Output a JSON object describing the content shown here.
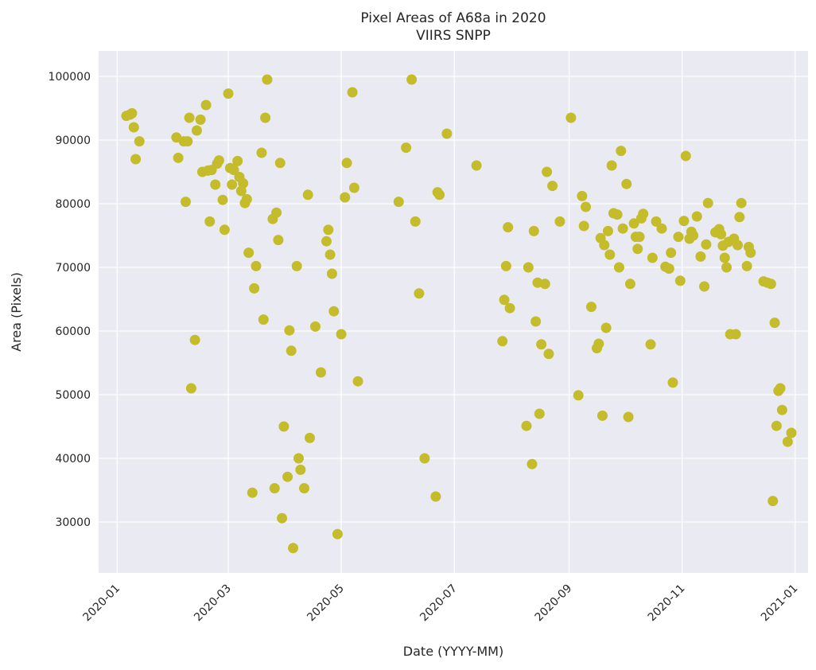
{
  "chart_data": {
    "type": "scatter",
    "title": "Pixel Areas of A68a in 2020",
    "subtitle": "VIIRS SNPP",
    "xlabel": "Date (YYYY-MM)",
    "ylabel": "Area (Pixels)",
    "xlim": [
      "2019-12-22",
      "2021-01-08"
    ],
    "ylim": [
      22000,
      104000
    ],
    "xticks": [
      "2020-01",
      "2020-03",
      "2020-05",
      "2020-07",
      "2020-09",
      "2020-11",
      "2021-01"
    ],
    "yticks": [
      30000,
      40000,
      50000,
      60000,
      70000,
      80000,
      90000,
      100000
    ],
    "grid": true,
    "marker_color": "#c4bc2b",
    "background_color": "#eaeaf2",
    "points": [
      [
        "2020-01-06",
        93800
      ],
      [
        "2020-01-08",
        94000
      ],
      [
        "2020-01-09",
        94200
      ],
      [
        "2020-01-10",
        92000
      ],
      [
        "2020-01-11",
        87000
      ],
      [
        "2020-01-13",
        89800
      ],
      [
        "2020-02-02",
        90400
      ],
      [
        "2020-02-03",
        87200
      ],
      [
        "2020-02-06",
        89800
      ],
      [
        "2020-02-07",
        80300
      ],
      [
        "2020-02-08",
        89800
      ],
      [
        "2020-02-09",
        93500
      ],
      [
        "2020-02-10",
        51000
      ],
      [
        "2020-02-12",
        58600
      ],
      [
        "2020-02-13",
        91500
      ],
      [
        "2020-02-15",
        93200
      ],
      [
        "2020-02-16",
        85000
      ],
      [
        "2020-02-18",
        95500
      ],
      [
        "2020-02-19",
        85200
      ],
      [
        "2020-02-20",
        77200
      ],
      [
        "2020-02-21",
        85300
      ],
      [
        "2020-02-23",
        83000
      ],
      [
        "2020-02-24",
        86300
      ],
      [
        "2020-02-25",
        86800
      ],
      [
        "2020-02-27",
        80600
      ],
      [
        "2020-02-28",
        75900
      ],
      [
        "2020-03-01",
        97300
      ],
      [
        "2020-03-02",
        85600
      ],
      [
        "2020-03-03",
        83000
      ],
      [
        "2020-03-04",
        85300
      ],
      [
        "2020-03-06",
        86700
      ],
      [
        "2020-03-07",
        84200
      ],
      [
        "2020-03-08",
        82000
      ],
      [
        "2020-03-09",
        83200
      ],
      [
        "2020-03-10",
        80100
      ],
      [
        "2020-03-11",
        80700
      ],
      [
        "2020-03-12",
        72300
      ],
      [
        "2020-03-14",
        34600
      ],
      [
        "2020-03-15",
        66700
      ],
      [
        "2020-03-16",
        70200
      ],
      [
        "2020-03-19",
        88000
      ],
      [
        "2020-03-20",
        61800
      ],
      [
        "2020-03-21",
        93500
      ],
      [
        "2020-03-22",
        99500
      ],
      [
        "2020-03-25",
        77600
      ],
      [
        "2020-03-26",
        35300
      ],
      [
        "2020-03-27",
        78600
      ],
      [
        "2020-03-28",
        74300
      ],
      [
        "2020-03-29",
        86400
      ],
      [
        "2020-03-30",
        30600
      ],
      [
        "2020-03-31",
        45000
      ],
      [
        "2020-04-02",
        37100
      ],
      [
        "2020-04-03",
        60100
      ],
      [
        "2020-04-04",
        56900
      ],
      [
        "2020-04-05",
        25900
      ],
      [
        "2020-04-07",
        70200
      ],
      [
        "2020-04-08",
        40000
      ],
      [
        "2020-04-09",
        38200
      ],
      [
        "2020-04-11",
        35300
      ],
      [
        "2020-04-13",
        81400
      ],
      [
        "2020-04-14",
        43200
      ],
      [
        "2020-04-17",
        60700
      ],
      [
        "2020-04-20",
        53500
      ],
      [
        "2020-04-23",
        74100
      ],
      [
        "2020-04-24",
        75900
      ],
      [
        "2020-04-25",
        72000
      ],
      [
        "2020-04-26",
        69000
      ],
      [
        "2020-04-27",
        63100
      ],
      [
        "2020-04-29",
        28100
      ],
      [
        "2020-05-01",
        59500
      ],
      [
        "2020-05-03",
        81000
      ],
      [
        "2020-05-04",
        86400
      ],
      [
        "2020-05-07",
        97500
      ],
      [
        "2020-05-08",
        82500
      ],
      [
        "2020-05-10",
        52100
      ],
      [
        "2020-06-01",
        80300
      ],
      [
        "2020-06-05",
        88800
      ],
      [
        "2020-06-08",
        99500
      ],
      [
        "2020-06-10",
        77200
      ],
      [
        "2020-06-12",
        65900
      ],
      [
        "2020-06-15",
        40000
      ],
      [
        "2020-06-21",
        34000
      ],
      [
        "2020-06-22",
        81800
      ],
      [
        "2020-06-23",
        81400
      ],
      [
        "2020-06-27",
        91000
      ],
      [
        "2020-07-13",
        86000
      ],
      [
        "2020-07-27",
        58400
      ],
      [
        "2020-07-28",
        64900
      ],
      [
        "2020-07-29",
        70200
      ],
      [
        "2020-07-30",
        76300
      ],
      [
        "2020-07-31",
        63600
      ],
      [
        "2020-08-09",
        45100
      ],
      [
        "2020-08-10",
        70000
      ],
      [
        "2020-08-12",
        39100
      ],
      [
        "2020-08-13",
        75700
      ],
      [
        "2020-08-14",
        61500
      ],
      [
        "2020-08-15",
        67600
      ],
      [
        "2020-08-16",
        47000
      ],
      [
        "2020-08-17",
        57900
      ],
      [
        "2020-08-19",
        67400
      ],
      [
        "2020-08-20",
        85000
      ],
      [
        "2020-08-21",
        56400
      ],
      [
        "2020-08-23",
        82800
      ],
      [
        "2020-08-27",
        77200
      ],
      [
        "2020-09-02",
        93500
      ],
      [
        "2020-09-06",
        49900
      ],
      [
        "2020-09-08",
        81200
      ],
      [
        "2020-09-09",
        76500
      ],
      [
        "2020-09-10",
        79500
      ],
      [
        "2020-09-13",
        63800
      ],
      [
        "2020-09-16",
        57300
      ],
      [
        "2020-09-17",
        58000
      ],
      [
        "2020-09-18",
        74600
      ],
      [
        "2020-09-19",
        46700
      ],
      [
        "2020-09-20",
        73500
      ],
      [
        "2020-09-21",
        60500
      ],
      [
        "2020-09-22",
        75700
      ],
      [
        "2020-09-23",
        72000
      ],
      [
        "2020-09-24",
        86000
      ],
      [
        "2020-09-25",
        78500
      ],
      [
        "2020-09-27",
        78300
      ],
      [
        "2020-09-28",
        70000
      ],
      [
        "2020-09-29",
        88300
      ],
      [
        "2020-09-30",
        76100
      ],
      [
        "2020-10-02",
        83100
      ],
      [
        "2020-10-03",
        46500
      ],
      [
        "2020-10-04",
        67400
      ],
      [
        "2020-10-06",
        76900
      ],
      [
        "2020-10-07",
        74800
      ],
      [
        "2020-10-08",
        72900
      ],
      [
        "2020-10-09",
        74800
      ],
      [
        "2020-10-10",
        77700
      ],
      [
        "2020-10-11",
        78400
      ],
      [
        "2020-10-15",
        57900
      ],
      [
        "2020-10-16",
        71500
      ],
      [
        "2020-10-18",
        77200
      ],
      [
        "2020-10-21",
        76100
      ],
      [
        "2020-10-23",
        70100
      ],
      [
        "2020-10-25",
        69800
      ],
      [
        "2020-10-26",
        72300
      ],
      [
        "2020-10-27",
        51900
      ],
      [
        "2020-10-30",
        74800
      ],
      [
        "2020-10-31",
        67900
      ],
      [
        "2020-11-02",
        77300
      ],
      [
        "2020-11-03",
        87500
      ],
      [
        "2020-11-05",
        74500
      ],
      [
        "2020-11-06",
        75600
      ],
      [
        "2020-11-07",
        75000
      ],
      [
        "2020-11-09",
        78000
      ],
      [
        "2020-11-11",
        71700
      ],
      [
        "2020-11-13",
        67000
      ],
      [
        "2020-11-14",
        73600
      ],
      [
        "2020-11-15",
        80100
      ],
      [
        "2020-11-19",
        75500
      ],
      [
        "2020-11-21",
        76000
      ],
      [
        "2020-11-22",
        75200
      ],
      [
        "2020-11-23",
        73400
      ],
      [
        "2020-11-24",
        71500
      ],
      [
        "2020-11-25",
        70000
      ],
      [
        "2020-11-26",
        74000
      ],
      [
        "2020-11-27",
        59500
      ],
      [
        "2020-11-29",
        74500
      ],
      [
        "2020-11-30",
        59500
      ],
      [
        "2020-12-01",
        73500
      ],
      [
        "2020-12-02",
        77900
      ],
      [
        "2020-12-03",
        80100
      ],
      [
        "2020-12-06",
        70200
      ],
      [
        "2020-12-07",
        73200
      ],
      [
        "2020-12-08",
        72300
      ],
      [
        "2020-12-15",
        67800
      ],
      [
        "2020-12-17",
        67600
      ],
      [
        "2020-12-19",
        67400
      ],
      [
        "2020-12-20",
        33300
      ],
      [
        "2020-12-21",
        61300
      ],
      [
        "2020-12-22",
        45100
      ],
      [
        "2020-12-23",
        50600
      ],
      [
        "2020-12-24",
        51000
      ],
      [
        "2020-12-25",
        47600
      ],
      [
        "2020-12-28",
        42600
      ],
      [
        "2020-12-30",
        44000
      ]
    ]
  }
}
